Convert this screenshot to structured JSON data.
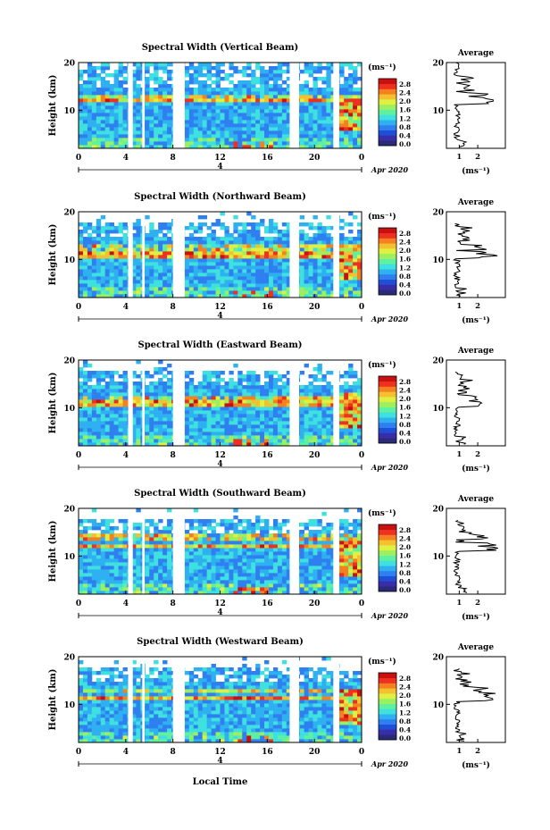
{
  "figure": {
    "xlabel": "Local Time",
    "date_label": "Apr 2020",
    "day_label": "4"
  },
  "colorbar": {
    "unit": "(ms⁻¹)",
    "ticks": [
      "2.8",
      "2.4",
      "2.0",
      "1.6",
      "1.2",
      "0.8",
      "0.4",
      "0.0"
    ],
    "colors": [
      "#2a2a78",
      "#3a2ea8",
      "#1f4fd6",
      "#2f7ff0",
      "#2fb0f0",
      "#3fe0e0",
      "#5ff0a0",
      "#9cf060",
      "#e0f040",
      "#f5c030",
      "#f58020",
      "#ee3020",
      "#c81010"
    ]
  },
  "chart_data": [
    {
      "type": "heatmap",
      "title": "Spectral Width (Vertical Beam)",
      "ylabel": "Height (km)",
      "x_ticks": [
        "0",
        "4",
        "8",
        "12",
        "16",
        "20",
        "0"
      ],
      "y_ticks": [
        "10",
        "20"
      ],
      "xlim": [
        0,
        24
      ],
      "ylim": [
        2,
        20
      ],
      "data_gaps_hours": [
        [
          4.2,
          4.6
        ],
        [
          5.4,
          5.6
        ],
        [
          8.0,
          9.0
        ],
        [
          17.9,
          18.7
        ],
        [
          21.6,
          22.1
        ]
      ],
      "enhanced_layers_km": [
        12,
        13
      ],
      "profile": {
        "title": "Average",
        "xlabel": "(ms⁻¹)",
        "x_ticks": [
          "1",
          "2"
        ],
        "y_ticks": [
          "10",
          "20"
        ]
      }
    },
    {
      "type": "heatmap",
      "title": "Spectral Width (Northward Beam)",
      "ylabel": "Height (km)",
      "x_ticks": [
        "0",
        "4",
        "8",
        "12",
        "16",
        "20",
        "0"
      ],
      "y_ticks": [
        "10",
        "20"
      ],
      "xlim": [
        0,
        24
      ],
      "ylim": [
        2,
        20
      ],
      "data_gaps_hours": [
        [
          4.2,
          4.6
        ],
        [
          5.4,
          5.6
        ],
        [
          8.0,
          9.0
        ],
        [
          17.9,
          18.7
        ],
        [
          21.6,
          22.1
        ]
      ],
      "enhanced_layers_km": [
        11,
        12.5
      ],
      "profile": {
        "title": "Average",
        "xlabel": "(ms⁻¹)",
        "x_ticks": [
          "1",
          "2"
        ],
        "y_ticks": [
          "10",
          "20"
        ]
      }
    },
    {
      "type": "heatmap",
      "title": "Spectral Width (Eastward Beam)",
      "ylabel": "Height (km)",
      "x_ticks": [
        "0",
        "4",
        "8",
        "12",
        "16",
        "20",
        "0"
      ],
      "y_ticks": [
        "10",
        "20"
      ],
      "xlim": [
        0,
        24
      ],
      "ylim": [
        2,
        20
      ],
      "data_gaps_hours": [
        [
          4.2,
          4.6
        ],
        [
          5.4,
          5.6
        ],
        [
          8.0,
          9.0
        ],
        [
          17.9,
          18.7
        ],
        [
          21.6,
          22.1
        ]
      ],
      "enhanced_layers_km": [
        11,
        12
      ],
      "profile": {
        "title": "Average",
        "xlabel": "(ms⁻¹)",
        "x_ticks": [
          "1",
          "2"
        ],
        "y_ticks": [
          "10",
          "20"
        ]
      }
    },
    {
      "type": "heatmap",
      "title": "Spectral Width (Southward Beam)",
      "ylabel": "Height (km)",
      "x_ticks": [
        "0",
        "4",
        "8",
        "12",
        "16",
        "20",
        "0"
      ],
      "y_ticks": [
        "10",
        "20"
      ],
      "xlim": [
        0,
        24
      ],
      "ylim": [
        2,
        20
      ],
      "data_gaps_hours": [
        [
          4.2,
          4.6
        ],
        [
          5.4,
          5.6
        ],
        [
          8.0,
          9.0
        ],
        [
          17.9,
          18.7
        ],
        [
          21.6,
          22.1
        ]
      ],
      "enhanced_layers_km": [
        12,
        14
      ],
      "profile": {
        "title": "Average",
        "xlabel": "(ms⁻¹)",
        "x_ticks": [
          "1",
          "2"
        ],
        "y_ticks": [
          "10",
          "20"
        ]
      }
    },
    {
      "type": "heatmap",
      "title": "Spectral Width (Westward Beam)",
      "ylabel": "Height (km)",
      "x_ticks": [
        "0",
        "4",
        "8",
        "12",
        "16",
        "20",
        "0"
      ],
      "y_ticks": [
        "10",
        "20"
      ],
      "xlim": [
        0,
        24
      ],
      "ylim": [
        2,
        20
      ],
      "data_gaps_hours": [
        [
          4.2,
          4.6
        ],
        [
          5.4,
          5.6
        ],
        [
          8.0,
          9.0
        ],
        [
          17.9,
          18.7
        ],
        [
          21.6,
          22.1
        ]
      ],
      "enhanced_layers_km": [
        11.5,
        13
      ],
      "profile": {
        "title": "Average",
        "xlabel": "(ms⁻¹)",
        "x_ticks": [
          "1",
          "2"
        ],
        "y_ticks": [
          "10",
          "20"
        ]
      }
    }
  ]
}
